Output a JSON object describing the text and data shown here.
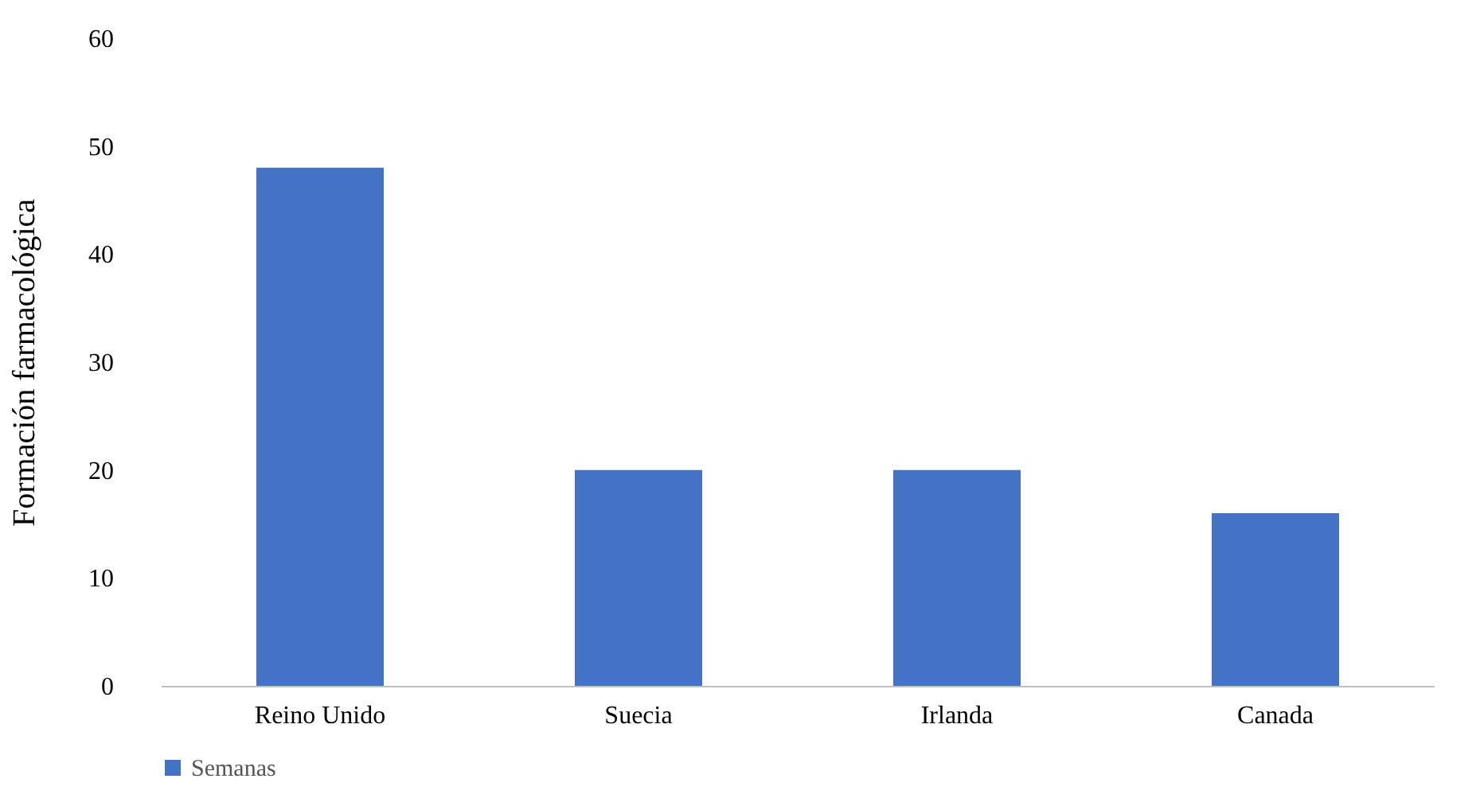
{
  "chart_data": {
    "type": "bar",
    "ylabel": "Formación farmacológica",
    "categories": [
      "Reino Unido",
      "Suecia",
      "Irlanda",
      "Canada"
    ],
    "series": [
      {
        "name": "Semanas",
        "color": "#4472c4",
        "values": [
          48,
          20,
          20,
          16
        ]
      }
    ],
    "ylim": [
      0,
      60
    ],
    "yticks": [
      0,
      10,
      20,
      30,
      40,
      50,
      60
    ],
    "legend": "bottom"
  }
}
